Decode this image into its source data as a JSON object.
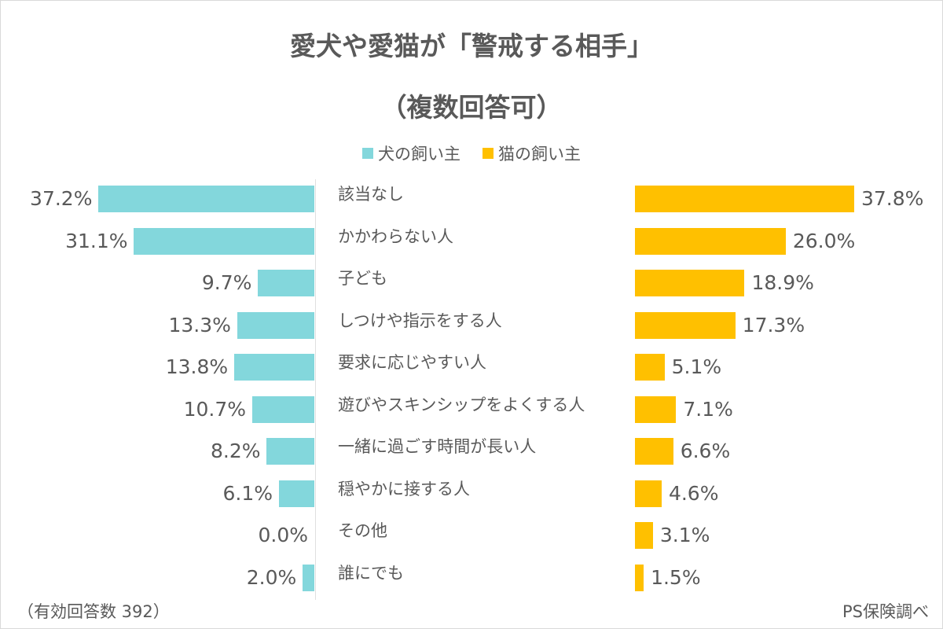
{
  "chart_data": {
    "type": "bar",
    "orientation": "horizontal-butterfly",
    "title": "愛犬や愛猫が「警戒する相手」",
    "subtitle": "（複数回答可）",
    "categories": [
      "該当なし",
      "かかわらない人",
      "子ども",
      "しつけや指示をする人",
      "要求に応じやすい人",
      "遊びやスキンシップをよくする人",
      "一緒に過ごす時間が長い人",
      "穏やかに接する人",
      "その他",
      "誰にでも"
    ],
    "series": [
      {
        "name": "犬の飼い主",
        "color": "#83D7DC",
        "values": [
          37.2,
          31.1,
          9.7,
          13.3,
          13.8,
          10.7,
          8.2,
          6.1,
          0.0,
          2.0
        ],
        "labels": [
          "37.2%",
          "31.1%",
          "9.7%",
          "13.3%",
          "13.8%",
          "10.7%",
          "8.2%",
          "6.1%",
          "0.0%",
          "2.0%"
        ]
      },
      {
        "name": "猫の飼い主",
        "color": "#FFC000",
        "values": [
          37.8,
          26.0,
          18.9,
          17.3,
          5.1,
          7.1,
          6.6,
          4.6,
          3.1,
          1.5
        ],
        "labels": [
          "37.8%",
          "26.0%",
          "18.9%",
          "17.3%",
          "5.1%",
          "7.1%",
          "6.6%",
          "4.6%",
          "3.1%",
          "1.5%"
        ]
      }
    ],
    "unit": "%",
    "legend_position": "top",
    "grid": false
  },
  "notes": {
    "sample": "（有効回答数 392）",
    "source": "PS保険調べ"
  }
}
